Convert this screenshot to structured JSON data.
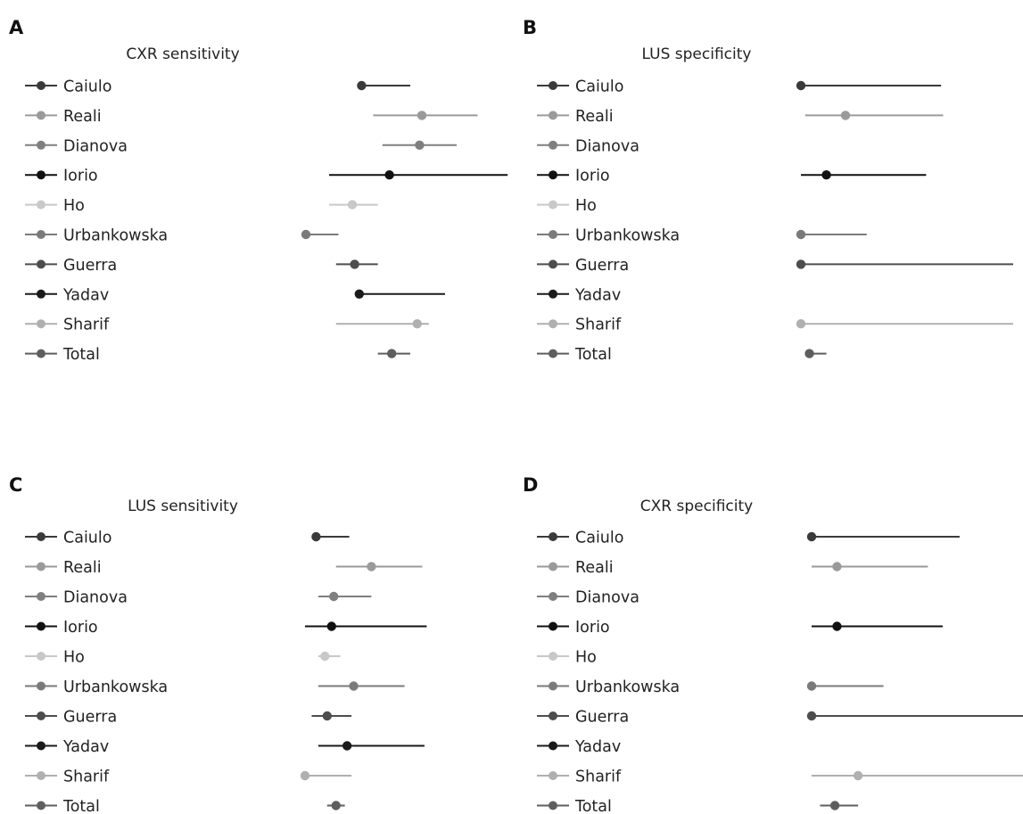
{
  "studies": [
    {
      "name": "Caiulo",
      "color": "#3a3a3a"
    },
    {
      "name": "Reali",
      "color": "#9a9a9a"
    },
    {
      "name": "Dianova",
      "color": "#7f7f7f"
    },
    {
      "name": "Iorio",
      "color": "#111111"
    },
    {
      "name": "Ho",
      "color": "#c8c8c8"
    },
    {
      "name": "Urbankowska",
      "color": "#7a7a7a"
    },
    {
      "name": "Guerra",
      "color": "#4d4d4d"
    },
    {
      "name": "Yadav",
      "color": "#1a1a1a"
    },
    {
      "name": "Sharif",
      "color": "#b0b0b0"
    },
    {
      "name": "Total",
      "color": "#5e5e5e"
    }
  ],
  "chart_data": [
    {
      "panel": "A",
      "type": "forest",
      "title": "CXR sensitivity",
      "xlim": [
        0,
        1
      ],
      "points": [
        {
          "study": "Caiulo",
          "est": 0.29,
          "lo": 0.29,
          "hi": 0.5
        },
        {
          "study": "Reali",
          "est": 0.55,
          "lo": 0.34,
          "hi": 0.79
        },
        {
          "study": "Dianova",
          "est": 0.54,
          "lo": 0.38,
          "hi": 0.7
        },
        {
          "study": "Iorio",
          "est": 0.41,
          "lo": 0.15,
          "hi": 0.92
        },
        {
          "study": "Ho",
          "est": 0.25,
          "lo": 0.15,
          "hi": 0.36
        },
        {
          "study": "Urbankowska",
          "est": 0.05,
          "lo": 0.05,
          "hi": 0.19
        },
        {
          "study": "Guerra",
          "est": 0.26,
          "lo": 0.18,
          "hi": 0.36
        },
        {
          "study": "Yadav",
          "est": 0.28,
          "lo": 0.28,
          "hi": 0.65
        },
        {
          "study": "Sharif",
          "est": 0.53,
          "lo": 0.18,
          "hi": 0.58
        },
        {
          "study": "Total",
          "est": 0.42,
          "lo": 0.36,
          "hi": 0.5
        }
      ]
    },
    {
      "panel": "B",
      "type": "forest",
      "title": "LUS specificity",
      "xlim": [
        0,
        1
      ],
      "points": [
        {
          "study": "Caiulo",
          "est": 0.0,
          "lo": 0.0,
          "hi": 0.66
        },
        {
          "study": "Reali",
          "est": 0.21,
          "lo": 0.02,
          "hi": 0.67
        },
        {
          "study": "Dianova",
          "est": null,
          "lo": null,
          "hi": null
        },
        {
          "study": "Iorio",
          "est": 0.12,
          "lo": 0.0,
          "hi": 0.59
        },
        {
          "study": "Ho",
          "est": null,
          "lo": null,
          "hi": null
        },
        {
          "study": "Urbankowska",
          "est": 0.0,
          "lo": 0.0,
          "hi": 0.31
        },
        {
          "study": "Guerra",
          "est": 0.0,
          "lo": 0.0,
          "hi": 1.0
        },
        {
          "study": "Yadav",
          "est": null,
          "lo": null,
          "hi": null
        },
        {
          "study": "Sharif",
          "est": 0.0,
          "lo": 0.0,
          "hi": 1.0
        },
        {
          "study": "Total",
          "est": 0.04,
          "lo": 0.02,
          "hi": 0.12
        }
      ]
    },
    {
      "panel": "C",
      "type": "forest",
      "title": "LUS sensitivity",
      "xlim": [
        0,
        1
      ],
      "points": [
        {
          "study": "Caiulo",
          "est": 0.05,
          "lo": 0.05,
          "hi": 0.2
        },
        {
          "study": "Reali",
          "est": 0.3,
          "lo": 0.14,
          "hi": 0.53
        },
        {
          "study": "Dianova",
          "est": 0.13,
          "lo": 0.06,
          "hi": 0.3
        },
        {
          "study": "Iorio",
          "est": 0.12,
          "lo": 0.0,
          "hi": 0.55
        },
        {
          "study": "Ho",
          "est": 0.09,
          "lo": 0.06,
          "hi": 0.16
        },
        {
          "study": "Urbankowska",
          "est": 0.22,
          "lo": 0.06,
          "hi": 0.45
        },
        {
          "study": "Guerra",
          "est": 0.1,
          "lo": 0.03,
          "hi": 0.21
        },
        {
          "study": "Yadav",
          "est": 0.19,
          "lo": 0.06,
          "hi": 0.54
        },
        {
          "study": "Sharif",
          "est": 0.0,
          "lo": 0.0,
          "hi": 0.21
        },
        {
          "study": "Total",
          "est": 0.14,
          "lo": 0.1,
          "hi": 0.18
        }
      ]
    },
    {
      "panel": "D",
      "type": "forest",
      "title": "CXR specificity",
      "xlim": [
        0,
        1
      ],
      "points": [
        {
          "study": "Caiulo",
          "est": 0.0,
          "lo": 0.0,
          "hi": 0.7
        },
        {
          "study": "Reali",
          "est": 0.12,
          "lo": 0.0,
          "hi": 0.55
        },
        {
          "study": "Dianova",
          "est": null,
          "lo": null,
          "hi": null
        },
        {
          "study": "Iorio",
          "est": 0.12,
          "lo": 0.0,
          "hi": 0.62
        },
        {
          "study": "Ho",
          "est": null,
          "lo": null,
          "hi": null
        },
        {
          "study": "Urbankowska",
          "est": 0.0,
          "lo": 0.0,
          "hi": 0.34
        },
        {
          "study": "Guerra",
          "est": 0.0,
          "lo": 0.0,
          "hi": 1.0
        },
        {
          "study": "Yadav",
          "est": null,
          "lo": null,
          "hi": null
        },
        {
          "study": "Sharif",
          "est": 0.22,
          "lo": 0.0,
          "hi": 1.0
        },
        {
          "study": "Total",
          "est": 0.11,
          "lo": 0.04,
          "hi": 0.22
        }
      ]
    }
  ]
}
